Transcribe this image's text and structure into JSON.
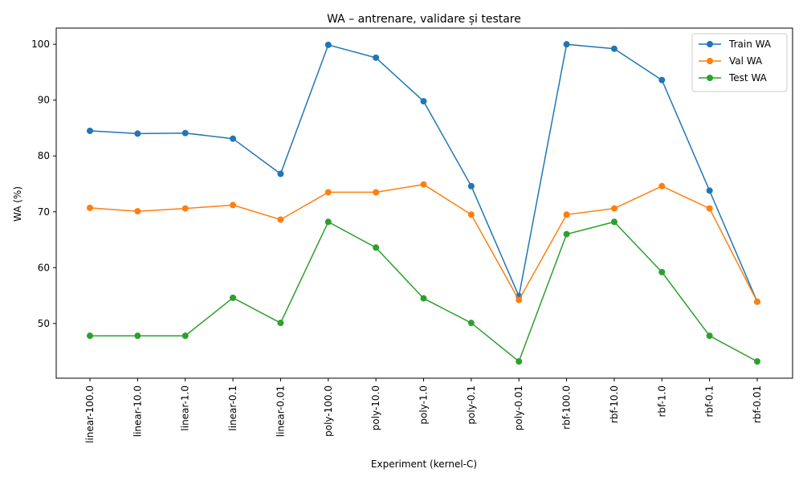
{
  "chart_data": {
    "type": "line",
    "title": "WA – antrenare, validare și testare",
    "xlabel": "Experiment (kernel-C)",
    "ylabel": "WA (%)",
    "categories": [
      "linear-100.0",
      "linear-10.0",
      "linear-1.0",
      "linear-0.1",
      "linear-0.01",
      "poly-100.0",
      "poly-10.0",
      "poly-1.0",
      "poly-0.1",
      "poly-0.01",
      "rbf-100.0",
      "rbf-10.0",
      "rbf-1.0",
      "rbf-0.1",
      "rbf-0.01"
    ],
    "ylim": [
      40.2,
      102.9
    ],
    "yticks": [
      50,
      60,
      70,
      80,
      90,
      100
    ],
    "grid": false,
    "legend_position": "top-right",
    "series": [
      {
        "name": "Train WA",
        "color": "#1f77b4",
        "values": [
          84.5,
          84.0,
          84.1,
          83.1,
          76.8,
          99.9,
          97.6,
          89.8,
          74.6,
          54.9,
          100.0,
          99.2,
          93.6,
          73.8,
          53.9
        ]
      },
      {
        "name": "Val WA",
        "color": "#ff7f0e",
        "values": [
          70.7,
          70.1,
          70.6,
          71.2,
          68.6,
          73.5,
          73.5,
          74.9,
          69.5,
          54.2,
          69.5,
          70.6,
          74.6,
          70.6,
          53.9
        ]
      },
      {
        "name": "Test WA",
        "color": "#2ca02c",
        "values": [
          47.8,
          47.8,
          47.8,
          54.6,
          50.1,
          68.2,
          63.6,
          54.5,
          50.1,
          43.2,
          66.0,
          68.2,
          59.2,
          47.8,
          43.2
        ]
      }
    ]
  }
}
